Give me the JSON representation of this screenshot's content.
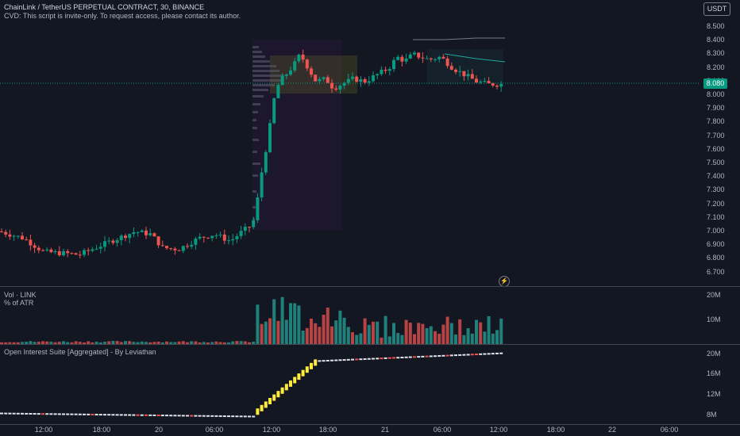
{
  "header": {
    "symbol_line": "ChainLink / TetherUS PERPETUAL CONTRACT, 30, BINANCE",
    "notice_line": "CVD: This script is invite-only. To request access, please contact its author.",
    "currency_button": "USDT"
  },
  "price_axis": {
    "ticks": [
      "8.500",
      "8.400",
      "8.300",
      "8.200",
      "8.100",
      "8.000",
      "7.900",
      "7.800",
      "7.700",
      "7.600",
      "7.500",
      "7.400",
      "7.300",
      "7.200",
      "7.100",
      "7.000",
      "6.900",
      "6.800",
      "6.700"
    ],
    "last_price": "8.080"
  },
  "volume_pane": {
    "title": "Vol · LINK",
    "subtitle": "% of ATR",
    "ticks": [
      "20M",
      "10M"
    ]
  },
  "oi_pane": {
    "title": "Open Interest Suite [Aggregated] - By Leviathan",
    "ticks": [
      "20M",
      "16M",
      "12M",
      "8M"
    ]
  },
  "time_axis": {
    "labels": [
      "12:00",
      "18:00",
      "20",
      "06:00",
      "12:00",
      "18:00",
      "21",
      "06:00",
      "12:00",
      "18:00",
      "22",
      "06:00"
    ]
  },
  "colors": {
    "up": "#26a69a",
    "up_bright": "#089981",
    "down": "#ef5350",
    "oi": "#ffeb3b",
    "background": "#131722"
  },
  "icons": {
    "alert": "lightning-icon"
  }
}
